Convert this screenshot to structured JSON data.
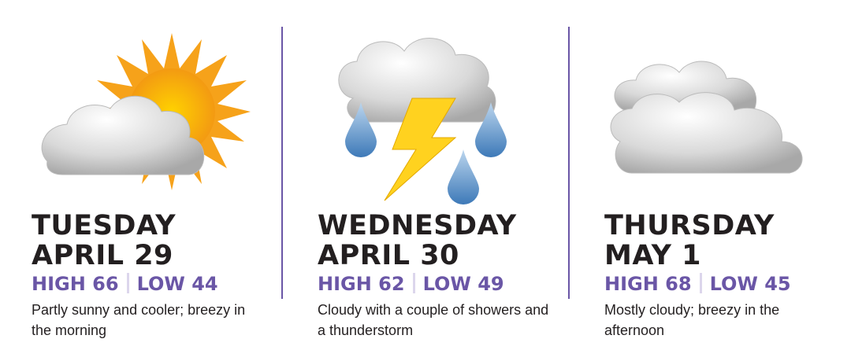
{
  "accent_color": "#6a56a6",
  "days": [
    {
      "day": "TUESDAY",
      "date": "APRIL 29",
      "high": "HIGH 66",
      "low": "LOW 44",
      "description": "Partly sunny and cooler; breezy in the morning",
      "icon": "partly-sunny-icon"
    },
    {
      "day": "WEDNESDAY",
      "date": "APRIL 30",
      "high": "HIGH 62",
      "low": "LOW 49",
      "description": "Cloudy with a couple of showers and a thunderstorm",
      "icon": "thunderstorm-icon"
    },
    {
      "day": "THURSDAY",
      "date": "MAY 1",
      "high": "HIGH 68",
      "low": "LOW 45",
      "description": "Mostly cloudy; breezy in the afternoon",
      "icon": "cloudy-icon"
    }
  ]
}
